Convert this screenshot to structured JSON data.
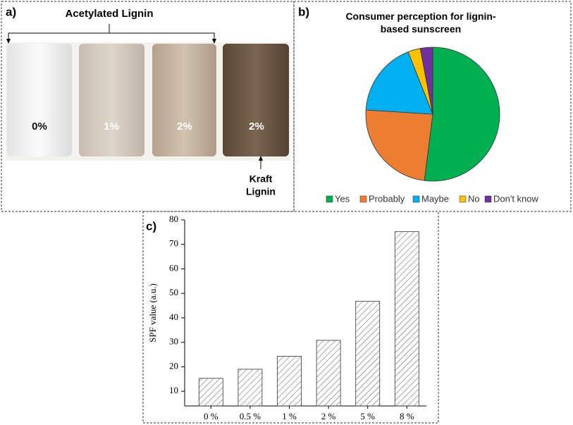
{
  "panel_labels": [
    "a)",
    "b)",
    "c)"
  ],
  "photo": {
    "bracket_label": "Acetylated Lignin",
    "vial_labels": [
      "0%",
      "1%",
      "2%",
      "2%"
    ],
    "arrow_label": [
      "Kraft",
      "Lignin"
    ]
  },
  "chart_data": [
    {
      "type": "pie",
      "title": "Consumer perception for lignin-based sunscreen",
      "categories": [
        "Yes",
        "Probably",
        "Maybe",
        "No",
        "Don't know"
      ],
      "values": [
        52,
        24,
        18,
        3,
        3
      ],
      "colors": [
        "#00b050",
        "#ed7d31",
        "#00b0f0",
        "#ffc000",
        "#7030a0"
      ],
      "legend": "bottom"
    },
    {
      "type": "bar",
      "y_label": "SPF value (a.u.)",
      "categories": [
        "0 %",
        "0.5 %",
        "1 %",
        "2 %",
        "5 %",
        "8 %"
      ],
      "values": [
        15.3,
        19,
        24.3,
        30.8,
        46.8,
        75.2
      ],
      "ylim": [
        4,
        80
      ],
      "yticks": [
        10,
        20,
        30,
        40,
        50,
        60,
        70,
        80
      ],
      "grid": false,
      "pattern": "hatch"
    }
  ]
}
